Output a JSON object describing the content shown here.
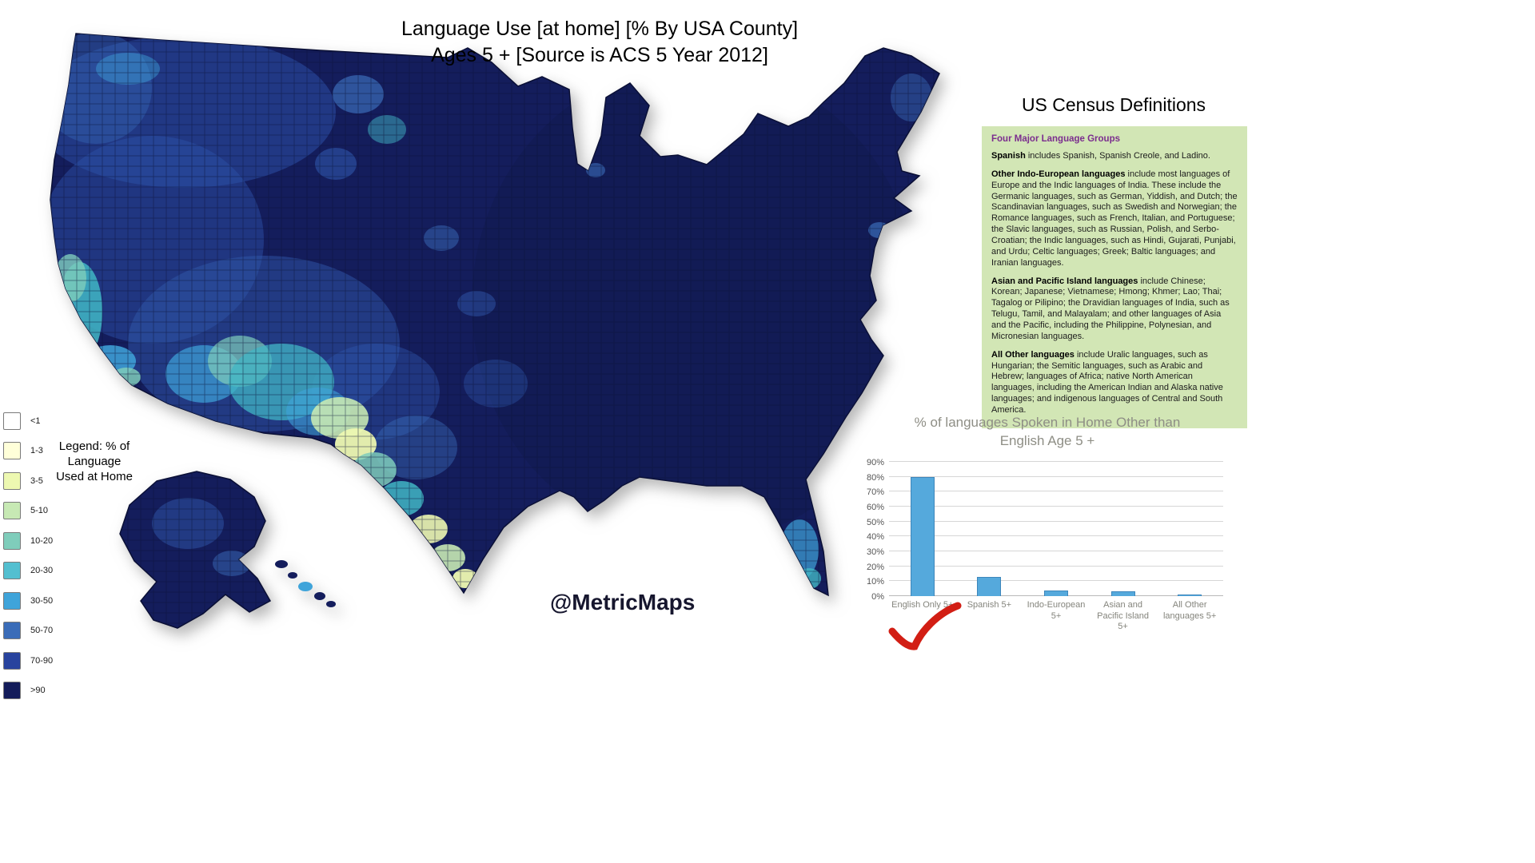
{
  "title": {
    "line1": "Language Use [at home]  [% By USA County]",
    "line2": "Ages 5 + [Source is ACS 5 Year 2012]"
  },
  "watermark": "@MetricMaps",
  "legend": {
    "caption_lines": [
      "Legend: % of",
      "Language",
      "Used at Home"
    ],
    "items": [
      {
        "label": "<1",
        "color": "#ffffff"
      },
      {
        "label": "1-3",
        "color": "#ffffd9"
      },
      {
        "label": "3-5",
        "color": "#edf8b1"
      },
      {
        "label": "5-10",
        "color": "#c7e9b4"
      },
      {
        "label": "10-20",
        "color": "#7fcdbb"
      },
      {
        "label": "20-30",
        "color": "#53bfd0"
      },
      {
        "label": "30-50",
        "color": "#3fa4da"
      },
      {
        "label": "50-70",
        "color": "#3a6cb8"
      },
      {
        "label": "70-90",
        "color": "#28439e"
      },
      {
        "label": ">90",
        "color": "#131c5a"
      }
    ]
  },
  "definitions": {
    "heading": "US Census Definitions",
    "subheading": "Four Major Language Groups",
    "subheading_color": "#7b2d8e",
    "panel_color": "#d2e6b5",
    "paragraphs": [
      {
        "lead": "Spanish",
        "text": " includes Spanish, Spanish Creole, and Ladino."
      },
      {
        "lead": "Other Indo-European languages",
        "text": " include most languages of Europe and the Indic languages of India. These include the Germanic languages, such as German, Yiddish, and Dutch; the Scandinavian languages, such as Swedish and Norwegian; the Romance languages, such as French, Italian, and Portuguese; the Slavic languages, such as Russian, Polish, and Serbo-Croatian; the Indic languages, such as Hindi, Gujarati, Punjabi, and Urdu; Celtic languages; Greek; Baltic languages; and Iranian languages."
      },
      {
        "lead": "Asian and Pacific Island languages",
        "text": " include Chinese; Korean; Japanese; Vietnamese; Hmong; Khmer; Lao; Thai; Tagalog or Pilipino; the Dravidian languages of India, such as Telugu, Tamil, and Malayalam; and other languages of Asia and the Pacific, including the Philippine, Polynesian, and Micronesian languages."
      },
      {
        "lead": "All Other languages",
        "text": " include Uralic languages, such as Hungarian; the Semitic languages, such as Arabic and Hebrew; languages of Africa; native North American languages, including the American Indian and Alaska native languages; and indigenous languages of Central and South America."
      }
    ]
  },
  "chart_data": {
    "type": "bar",
    "title_lines": [
      "% of languages Spoken in Home  Other than",
      "English Age 5 +"
    ],
    "categories": [
      "English Only 5+",
      "Spanish 5+",
      "Indo-European 5+",
      "Asian and Pacific Island 5+",
      "All Other languages 5+"
    ],
    "values": [
      80,
      13,
      3.7,
      3.2,
      1
    ],
    "ylim": [
      0,
      90
    ],
    "ytick_step": 10,
    "ytick_labels": [
      "0%",
      "10%",
      "20%",
      "30%",
      "40%",
      "50%",
      "60%",
      "70%",
      "80%",
      "90%"
    ],
    "ylabel": "",
    "xlabel": "",
    "grid": true,
    "legend_position": "none",
    "bar_color": "#55a9dc"
  },
  "map": {
    "base_color": "#141d5c",
    "description": "USA county choropleth, % language used at home"
  }
}
